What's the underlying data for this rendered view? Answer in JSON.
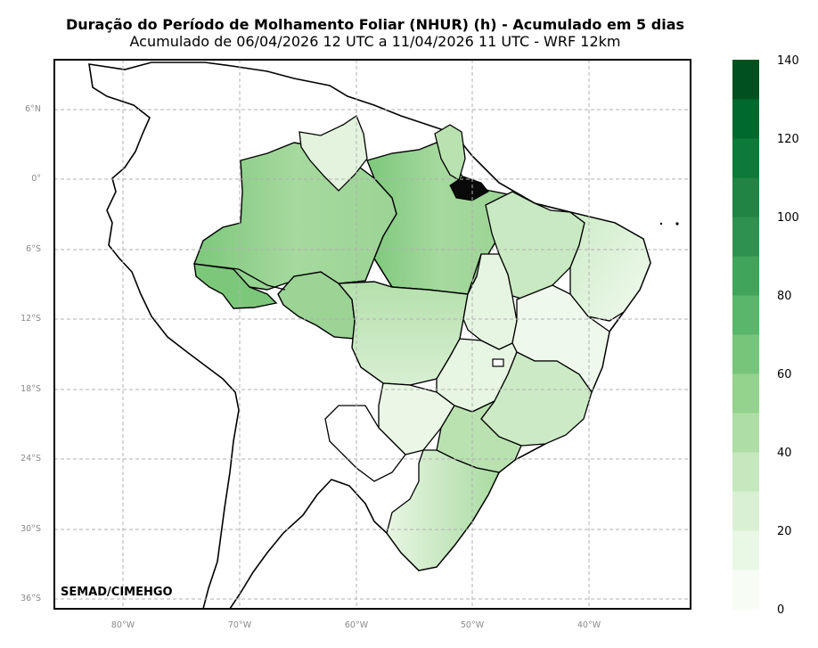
{
  "header": {
    "title": "Duração do Período de Molhamento Foliar (NHUR) (h) - Acumulado em 5 dias",
    "subtitle": "Acumulado de 06/04/2026 12 UTC a 11/04/2026 11 UTC - WRF 12km"
  },
  "credit": "SEMAD/CIMEHGO",
  "map": {
    "lat_ticks": [
      "6°N",
      "0°",
      "6°S",
      "12°S",
      "18°S",
      "24°S",
      "30°S",
      "36°S"
    ],
    "lon_ticks": [
      "80°W",
      "70°W",
      "60°W",
      "50°W",
      "40°W"
    ],
    "grid": true,
    "land_color": "#ffffff",
    "border_color": "#000000"
  },
  "colorbar": {
    "labels": [
      "140",
      "120",
      "100",
      "80",
      "60",
      "40",
      "20",
      "0"
    ],
    "colors": [
      "#f7fcf5",
      "#e9f7e5",
      "#daf0d4",
      "#c6e8bf",
      "#aedea6",
      "#94d38d",
      "#77c57a",
      "#5ab669",
      "#40a45a",
      "#2f9150",
      "#218344",
      "#0c7a38",
      "#006a2e",
      "#00511f"
    ]
  }
}
